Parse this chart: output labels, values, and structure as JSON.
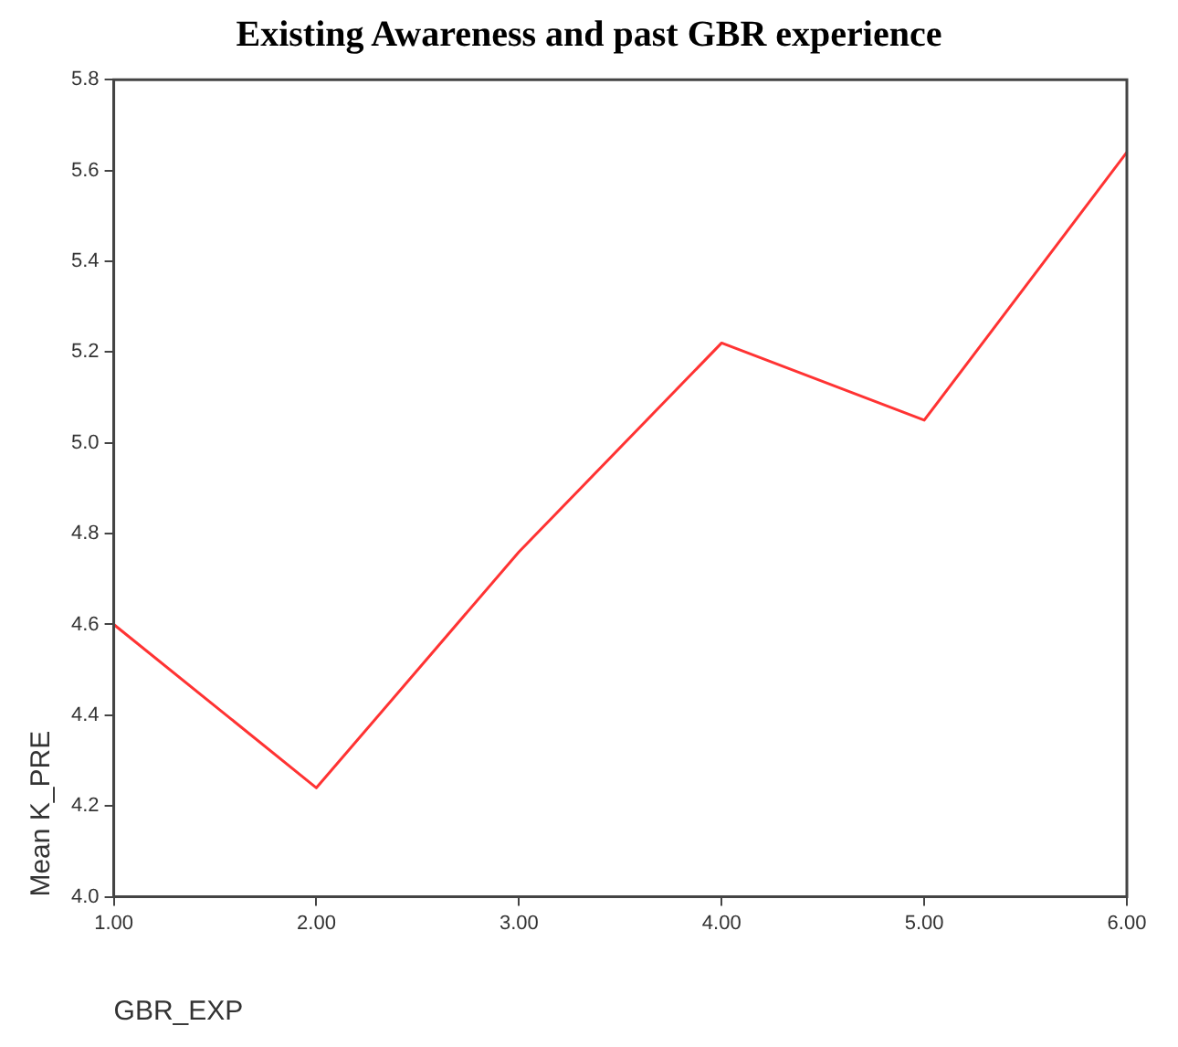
{
  "chart_data": {
    "type": "line",
    "title": "Existing Awareness and past GBR experience",
    "xlabel": "GBR_EXP",
    "ylabel": "Mean K_PRE",
    "categories": [
      "1.00",
      "2.00",
      "3.00",
      "4.00",
      "5.00",
      "6.00"
    ],
    "series": [
      {
        "color": "#ff3333",
        "values": [
          4.6,
          4.24,
          4.76,
          5.22,
          5.05,
          5.64
        ]
      }
    ],
    "ylim": [
      4.0,
      5.8
    ],
    "yticks": [
      {
        "value": 4.0,
        "label": "4.0"
      },
      {
        "value": 4.2,
        "label": "4.2"
      },
      {
        "value": 4.4,
        "label": "4.4"
      },
      {
        "value": 4.6,
        "label": "4.6"
      },
      {
        "value": 4.8,
        "label": "4.8"
      },
      {
        "value": 5.0,
        "label": "5.0"
      },
      {
        "value": 5.2,
        "label": "5.2"
      },
      {
        "value": 5.4,
        "label": "5.4"
      },
      {
        "value": 5.6,
        "label": "5.6"
      },
      {
        "value": 5.8,
        "label": "5.8"
      }
    ],
    "grid": false,
    "legend": false,
    "marker": "none",
    "line_style": "solid"
  }
}
